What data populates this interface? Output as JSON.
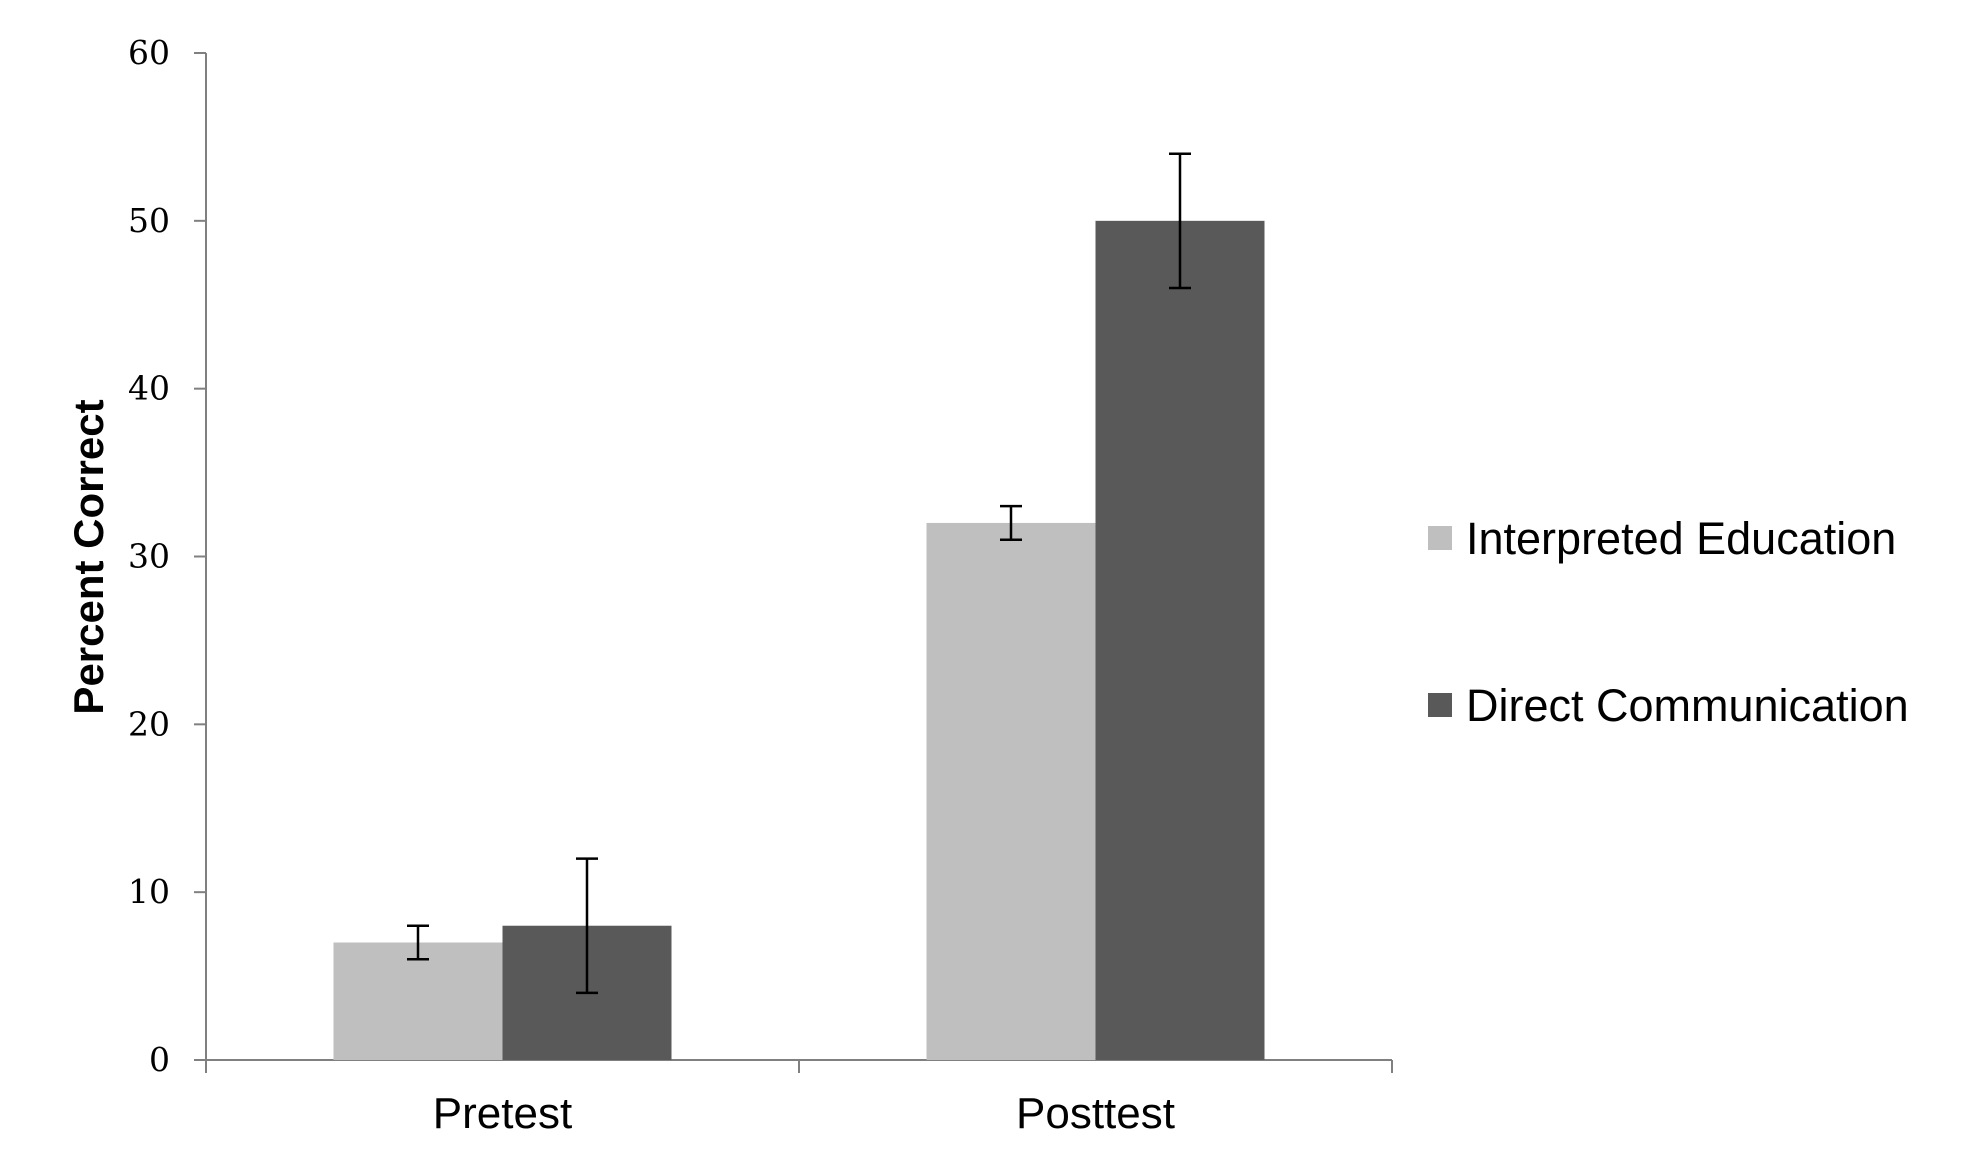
{
  "chart_data": {
    "type": "bar",
    "title": "",
    "xlabel": "",
    "ylabel": "Percent Correct",
    "ylim": [
      0,
      60
    ],
    "yticks": [
      0,
      10,
      20,
      30,
      40,
      50,
      60
    ],
    "grid": false,
    "legend_position": "right",
    "categories": [
      "Pretest",
      "Posttest"
    ],
    "series": [
      {
        "name": "Interpreted Education",
        "color": "#bfbfbf",
        "values": [
          7,
          32
        ],
        "error": [
          1,
          1
        ]
      },
      {
        "name": "Direct Communication",
        "color": "#595959",
        "values": [
          8,
          50
        ],
        "error": [
          4,
          4
        ]
      }
    ]
  }
}
